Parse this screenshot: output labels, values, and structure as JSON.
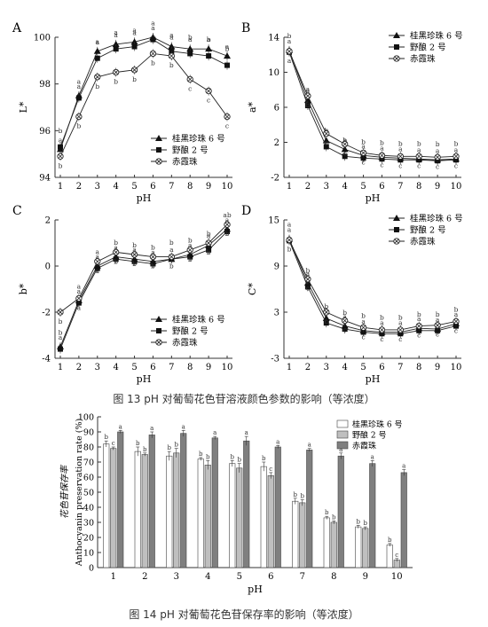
{
  "figure13": {
    "caption": "图  13 pH 对葡萄花色苷溶液颜色参数的影响（等浓度）",
    "panels": [
      {
        "letter": "A",
        "ylabel": "L*",
        "xlabel": "pH",
        "ylim": [
          94,
          100
        ],
        "yticks": [
          94,
          96,
          98,
          100
        ],
        "xticks": [
          1,
          2,
          3,
          4,
          5,
          6,
          7,
          8,
          9,
          10
        ],
        "legend": [
          "桂黑珍珠 6 号",
          "野酿 2 号",
          "赤霞珠"
        ],
        "series": [
          {
            "name": "桂黑珍珠 6 号",
            "values": [
              95.2,
              97.5,
              99.4,
              99.7,
              99.8,
              100.0,
              99.6,
              99.5,
              99.5,
              99.2
            ]
          },
          {
            "name": "野酿 2 号",
            "values": [
              95.3,
              97.4,
              99.1,
              99.5,
              99.6,
              99.9,
              99.4,
              99.3,
              99.2,
              98.8
            ]
          },
          {
            "name": "赤霞珠",
            "values": [
              94.9,
              96.6,
              98.3,
              98.5,
              98.6,
              99.3,
              99.2,
              98.2,
              97.7,
              96.6
            ]
          }
        ],
        "letters": [
          [
            "a",
            "a",
            "a",
            "a",
            "a",
            "a",
            "a",
            "a",
            "a",
            "a"
          ],
          [
            "b",
            "a",
            "a",
            "a",
            "a",
            "a",
            "a",
            "b",
            "b",
            "b"
          ],
          [
            "b",
            "b",
            "b",
            "b",
            "b",
            "b",
            "b",
            "c",
            "c",
            "c"
          ]
        ]
      },
      {
        "letter": "B",
        "ylabel": "a*",
        "xlabel": "pH",
        "ylim": [
          -2,
          14
        ],
        "yticks": [
          -2,
          2,
          6,
          10,
          14
        ],
        "xticks": [
          1,
          2,
          3,
          4,
          5,
          6,
          7,
          8,
          9,
          10
        ],
        "legend": [
          "桂黑珍珠 6 号",
          "野酿 2 号",
          "赤霞珠"
        ],
        "series": [
          {
            "name": "桂黑珍珠 6 号",
            "values": [
              12.5,
              6.8,
              2.2,
              1.2,
              0.5,
              0.3,
              0.2,
              0.1,
              0.0,
              0.1
            ]
          },
          {
            "name": "野酿 2 号",
            "values": [
              12.3,
              6.2,
              1.5,
              0.4,
              0.2,
              0.1,
              0.0,
              0.0,
              -0.1,
              0.0
            ]
          },
          {
            "name": "赤霞珠",
            "values": [
              12.4,
              7.3,
              3.0,
              1.8,
              0.8,
              0.5,
              0.4,
              0.4,
              0.3,
              0.4
            ]
          }
        ],
        "letters": [
          [
            "a",
            "a",
            "a",
            "a",
            "a",
            "a",
            "a",
            "a",
            "a",
            "a"
          ],
          [
            "b",
            "a",
            "b",
            "b",
            "b",
            "b",
            "b",
            "b",
            "b",
            "b"
          ],
          [
            "a",
            "b",
            "c",
            "c",
            "c",
            "c",
            "c",
            "c",
            "c",
            "c"
          ]
        ]
      },
      {
        "letter": "C",
        "ylabel": "b*",
        "xlabel": "pH",
        "ylim": [
          -4,
          2
        ],
        "yticks": [
          -4,
          -2,
          0,
          2
        ],
        "xticks": [
          1,
          2,
          3,
          4,
          5,
          6,
          7,
          8,
          9,
          10
        ],
        "legend": [
          "桂黑珍珠 6 号",
          "野酿 2 号",
          "赤霞珠"
        ],
        "series": [
          {
            "name": "桂黑珍珠 6 号",
            "values": [
              -3.5,
              -1.5,
              0.0,
              0.4,
              0.3,
              0.2,
              0.3,
              0.5,
              0.9,
              1.6
            ]
          },
          {
            "name": "野酿 2 号",
            "values": [
              -3.6,
              -1.6,
              -0.1,
              0.3,
              0.2,
              0.1,
              0.3,
              0.4,
              0.7,
              1.5
            ]
          },
          {
            "name": "赤霞珠",
            "values": [
              -2.0,
              -1.4,
              0.2,
              0.6,
              0.5,
              0.4,
              0.4,
              0.7,
              1.0,
              1.8
            ]
          }
        ],
        "letters": [
          [
            "a",
            "a",
            "a",
            "a",
            "a",
            "a",
            "a",
            "a",
            "a",
            "a"
          ],
          [
            "b",
            "a",
            "a",
            "b",
            "b",
            "b",
            "b",
            "b",
            "b",
            "ab"
          ],
          [
            "b",
            "a",
            "a",
            "b",
            "b",
            "b",
            "b",
            "b",
            "b",
            "b"
          ]
        ]
      },
      {
        "letter": "D",
        "ylabel": "C*",
        "xlabel": "pH",
        "ylim": [
          -3,
          15
        ],
        "yticks": [
          -3,
          3,
          9,
          15
        ],
        "xticks": [
          1,
          2,
          3,
          4,
          5,
          6,
          7,
          8,
          9,
          10
        ],
        "legend": [
          "桂黑珍珠 6 号",
          "野酿 2 号",
          "赤霞珠"
        ],
        "series": [
          {
            "name": "桂黑珍珠 6 号",
            "values": [
              12.5,
              6.8,
              2.2,
              1.2,
              0.6,
              0.4,
              0.4,
              0.9,
              0.8,
              1.5
            ]
          },
          {
            "name": "野酿 2 号",
            "values": [
              12.3,
              6.3,
              1.6,
              0.8,
              0.4,
              0.2,
              0.2,
              0.6,
              0.6,
              1.2
            ]
          },
          {
            "name": "赤霞珠",
            "values": [
              12.4,
              7.3,
              3.0,
              1.9,
              1.0,
              0.7,
              0.7,
              1.2,
              1.3,
              1.8
            ]
          }
        ],
        "letters": [
          [
            "a",
            "a",
            "a",
            "a",
            "a",
            "a",
            "a",
            "a",
            "a",
            "a"
          ],
          [
            "a",
            "b",
            "b",
            "b",
            "b",
            "b",
            "b",
            "b",
            "b",
            "b"
          ],
          [
            "b",
            "c",
            "c",
            "c",
            "c",
            "c",
            "c",
            "c",
            "c",
            "c"
          ]
        ]
      }
    ]
  },
  "figure14": {
    "caption": "图  14 pH 对葡萄花色苷保存率的影响（等浓度）",
    "chart_data": {
      "type": "bar",
      "categories": [
        "1",
        "2",
        "3",
        "4",
        "5",
        "6",
        "7",
        "8",
        "9",
        "10"
      ],
      "series": [
        {
          "name": "桂黑珍珠 6 号",
          "values": [
            82,
            77,
            74,
            72,
            69,
            67,
            44,
            33,
            27,
            15
          ],
          "errors": [
            2,
            3,
            3,
            1,
            2,
            3,
            2,
            1,
            1,
            1
          ],
          "letters": [
            "b",
            "b",
            "b",
            "b",
            "b",
            "b",
            "b",
            "b",
            "b",
            "b"
          ]
        },
        {
          "name": "野酿 2 号",
          "values": [
            79,
            75,
            76,
            68,
            66,
            61,
            43,
            30,
            26,
            5
          ],
          "errors": [
            1,
            1,
            3,
            3,
            3,
            2,
            2,
            1,
            1,
            1
          ],
          "letters": [
            "c",
            "b",
            "b",
            "b",
            "b",
            "c",
            "b",
            "b",
            "b",
            "c"
          ]
        },
        {
          "name": "赤霞珠",
          "values": [
            90,
            88,
            89,
            86,
            84,
            80,
            78,
            74,
            69,
            63
          ],
          "errors": [
            1,
            2,
            2,
            1,
            3,
            1,
            1,
            2,
            2,
            2
          ],
          "letters": [
            "a",
            "a",
            "a",
            "a",
            "a",
            "a",
            "a",
            "a",
            "a",
            "a"
          ]
        }
      ],
      "xlabel": "pH",
      "ylabel_cn": "花色苷保存率",
      "ylabel": "Anthocyanin preservation rate (%)",
      "ylim": [
        0,
        100
      ],
      "yticks": [
        0,
        10,
        20,
        30,
        40,
        50,
        60,
        70,
        80,
        90,
        100
      ],
      "legend_placement": "top-right",
      "colors": [
        "#ffffff",
        "#bfbfbf",
        "#7f7f7f"
      ]
    }
  }
}
